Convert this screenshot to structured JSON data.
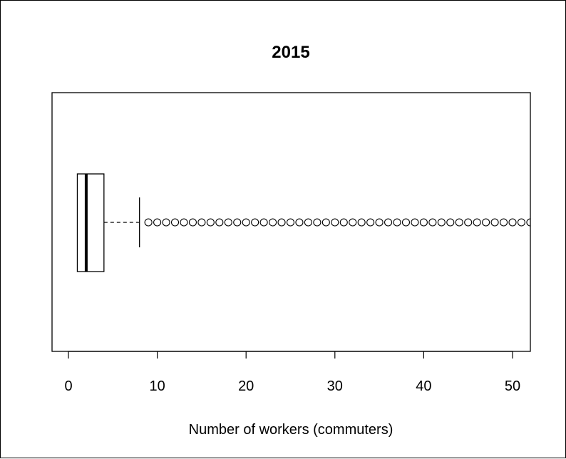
{
  "chart_data": {
    "type": "boxplot",
    "title": "2015",
    "xlabel": "Number of workers (commuters)",
    "ylabel": "",
    "orientation": "horizontal",
    "xlim": [
      -2,
      52
    ],
    "x_ticks": [
      0,
      10,
      20,
      30,
      40,
      50
    ],
    "x_tick_labels": [
      "0",
      "10",
      "20",
      "30",
      "40",
      "50"
    ],
    "box": {
      "min": 1,
      "q1": 1,
      "median": 2,
      "q3": 4,
      "whisker_low": 1,
      "whisker_high": 8
    },
    "outliers": [
      9,
      10,
      11,
      12,
      13,
      14,
      15,
      16,
      17,
      18,
      19,
      20,
      21,
      22,
      23,
      24,
      25,
      26,
      27,
      28,
      29,
      30,
      31,
      32,
      33,
      34,
      35,
      36,
      37,
      38,
      39,
      40,
      41,
      42,
      43,
      44,
      45,
      46,
      47,
      48,
      49,
      50,
      51,
      52
    ],
    "grid": false,
    "legend": "none"
  }
}
